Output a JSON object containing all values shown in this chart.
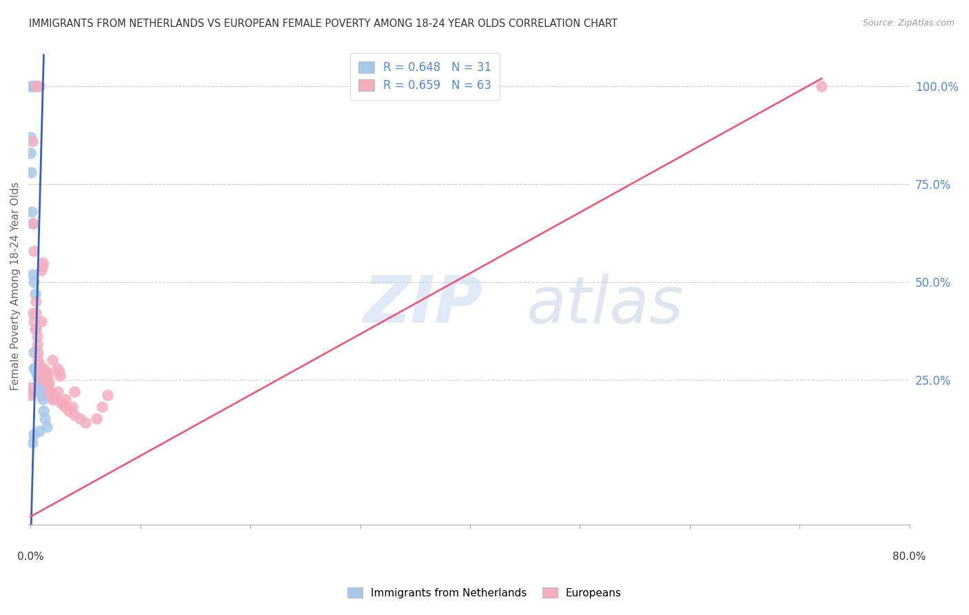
{
  "title": "IMMIGRANTS FROM NETHERLANDS VS EUROPEAN FEMALE POVERTY AMONG 18-24 YEAR OLDS CORRELATION CHART",
  "source": "Source: ZipAtlas.com",
  "ylabel": "Female Poverty Among 18-24 Year Olds",
  "legend_label1": "Immigrants from Netherlands",
  "legend_label2": "Europeans",
  "R1": 0.648,
  "N1": 31,
  "R2": 0.659,
  "N2": 63,
  "color_blue": "#a8c8e8",
  "color_pink": "#f4aec0",
  "color_blue_line": "#3060c0",
  "color_pink_line": "#e06080",
  "color_axis_text": "#5588cc",
  "title_color": "#333333",
  "xlim": [
    0.0,
    0.8
  ],
  "ylim_low": -0.12,
  "ylim_high": 1.1,
  "blue_line_x": [
    0.0,
    0.012
  ],
  "blue_line_y": [
    -0.18,
    1.08
  ],
  "pink_line_x": [
    0.0,
    0.72
  ],
  "pink_line_y": [
    -0.1,
    1.02
  ],
  "blue_x": [
    0.0002,
    0.001,
    0.003,
    0.003,
    0.0055,
    0.0,
    0.0,
    0.0005,
    0.001,
    0.002,
    0.0015,
    0.003,
    0.004,
    0.003,
    0.003,
    0.004,
    0.005,
    0.006,
    0.006,
    0.007,
    0.007,
    0.008,
    0.009,
    0.01,
    0.011,
    0.012,
    0.013,
    0.015,
    0.008,
    0.003,
    0.002
  ],
  "blue_y": [
    1.0,
    1.0,
    1.0,
    1.0,
    1.0,
    0.87,
    0.83,
    0.78,
    0.68,
    0.65,
    0.52,
    0.5,
    0.47,
    0.32,
    0.28,
    0.28,
    0.27,
    0.27,
    0.26,
    0.26,
    0.24,
    0.23,
    0.22,
    0.21,
    0.2,
    0.17,
    0.15,
    0.13,
    0.12,
    0.11,
    0.09
  ],
  "pink_x": [
    0.002,
    0.003,
    0.003,
    0.005,
    0.008,
    0.002,
    0.003,
    0.004,
    0.005,
    0.005,
    0.005,
    0.006,
    0.006,
    0.007,
    0.007,
    0.008,
    0.009,
    0.009,
    0.01,
    0.01,
    0.01,
    0.011,
    0.011,
    0.012,
    0.012,
    0.013,
    0.013,
    0.014,
    0.015,
    0.015,
    0.016,
    0.016,
    0.017,
    0.017,
    0.018,
    0.018,
    0.019,
    0.02,
    0.02,
    0.021,
    0.022,
    0.023,
    0.024,
    0.025,
    0.026,
    0.027,
    0.028,
    0.03,
    0.031,
    0.032,
    0.035,
    0.038,
    0.04,
    0.04,
    0.045,
    0.05,
    0.06,
    0.065,
    0.07,
    0.0,
    0.0,
    0.0,
    0.72
  ],
  "pink_y": [
    0.86,
    0.65,
    0.58,
    1.0,
    1.0,
    0.42,
    0.4,
    0.38,
    0.45,
    0.42,
    0.38,
    0.36,
    0.34,
    0.32,
    0.3,
    0.29,
    0.27,
    0.26,
    0.25,
    0.4,
    0.53,
    0.54,
    0.55,
    0.28,
    0.27,
    0.27,
    0.26,
    0.25,
    0.25,
    0.27,
    0.24,
    0.26,
    0.24,
    0.22,
    0.22,
    0.21,
    0.21,
    0.2,
    0.3,
    0.2,
    0.21,
    0.2,
    0.28,
    0.22,
    0.27,
    0.26,
    0.19,
    0.19,
    0.18,
    0.2,
    0.17,
    0.18,
    0.22,
    0.16,
    0.15,
    0.14,
    0.15,
    0.18,
    0.21,
    0.21,
    0.22,
    0.23,
    1.0
  ]
}
